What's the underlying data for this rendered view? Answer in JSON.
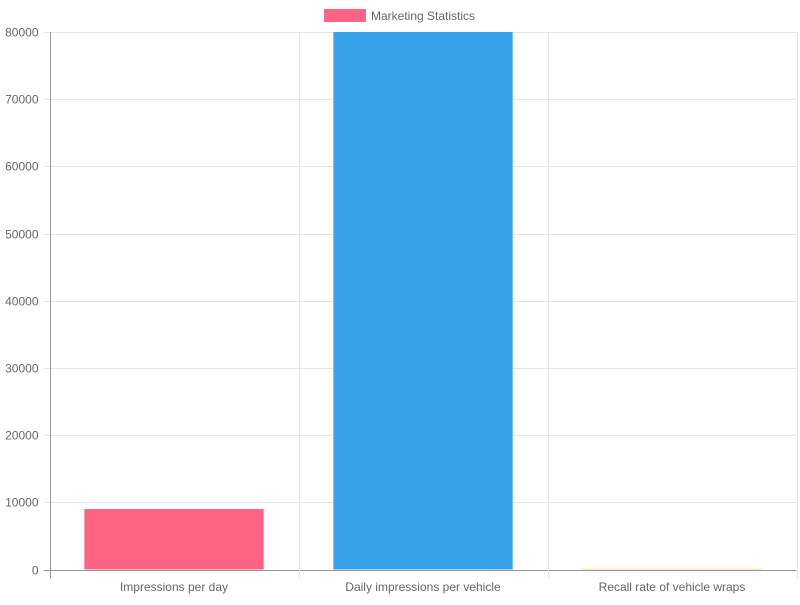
{
  "chart_data": {
    "type": "bar",
    "categories": [
      "Impressions per day",
      "Daily impressions per vehicle",
      "Recall rate of vehicle wraps"
    ],
    "series": [
      {
        "name": "Marketing Statistics",
        "values": [
          9000,
          80000,
          97
        ]
      }
    ],
    "bar_colors": [
      "#ff6384",
      "#36a2eb",
      "#ffce56"
    ],
    "legend_color": "#ff6384",
    "ylim": [
      0,
      80000
    ],
    "yticks": [
      "0",
      "10000",
      "20000",
      "30000",
      "40000",
      "50000",
      "60000",
      "70000",
      "80000"
    ],
    "ytick_values": [
      0,
      10000,
      20000,
      30000,
      40000,
      50000,
      60000,
      70000,
      80000
    ],
    "grid": true,
    "legend_position": "top",
    "colors": {
      "grid": "#e6e6e6",
      "axis": "#999999",
      "text": "#666666"
    }
  }
}
